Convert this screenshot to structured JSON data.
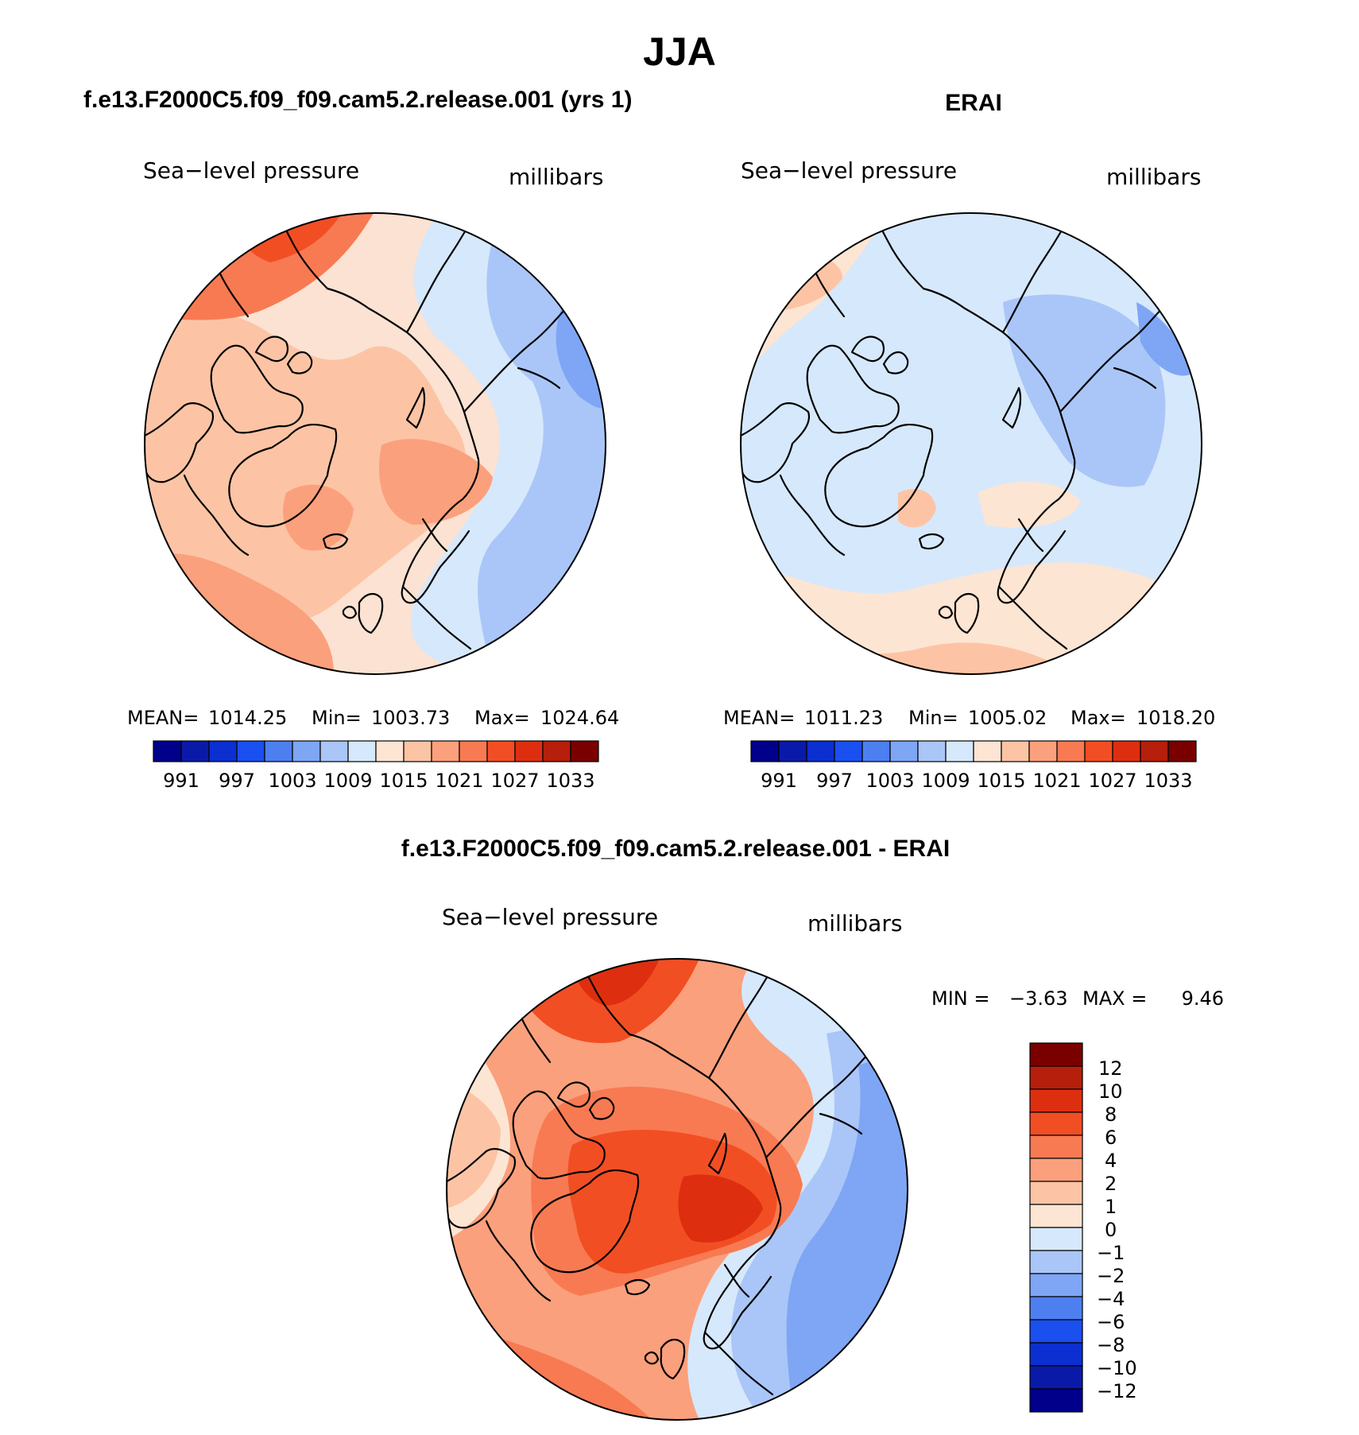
{
  "page_title": "JJA",
  "panels": [
    {
      "id": "model",
      "title": "f.e13.F2000C5.f09_f09.cam5.2.release.001 (yrs 1)",
      "left_label": "Sea−level pressure",
      "right_label": "millibars",
      "mean_label": "MEAN=",
      "mean": "1014.25",
      "min_label": "Min=",
      "min": "1003.73",
      "max_label": "Max=",
      "max": "1024.64"
    },
    {
      "id": "obs",
      "title": "ERAI",
      "left_label": "Sea−level pressure",
      "right_label": "millibars",
      "mean_label": "MEAN=",
      "mean": "1011.23",
      "min_label": "Min=",
      "min": "1005.02",
      "max_label": "Max=",
      "max": "1018.20"
    }
  ],
  "diff_panel": {
    "title": "f.e13.F2000C5.f09_f09.cam5.2.release.001 - ERAI",
    "left_label": "Sea−level pressure",
    "right_label": "millibars",
    "min_label": "MIN =",
    "min": "−3.63",
    "max_label": "MAX =",
    "max": "9.46"
  },
  "colorbars": {
    "slp": {
      "colors": [
        "#00008b",
        "#0a1aa8",
        "#0b2fd0",
        "#1a4ff0",
        "#4d7ff0",
        "#7ea6f5",
        "#aac6f8",
        "#d6e8fb",
        "#fde5d3",
        "#fcc4a5",
        "#fba07c",
        "#f87a52",
        "#f24e23",
        "#dd2f10",
        "#b51f0b",
        "#7a0000"
      ],
      "labels": [
        "991",
        "997",
        "1003",
        "1009",
        "1015",
        "1021",
        "1027",
        "1033"
      ]
    },
    "diff": {
      "colors": [
        "#7a0000",
        "#b51f0b",
        "#dd2f10",
        "#f24e23",
        "#f87a52",
        "#fba07c",
        "#fcc4a5",
        "#fde5d3",
        "#d6e8fb",
        "#aac6f8",
        "#7ea6f5",
        "#4d7ff0",
        "#1a4ff0",
        "#0b2fd0",
        "#0a1aa8",
        "#00008b"
      ],
      "labels": [
        "12",
        "10",
        "8",
        "6",
        "4",
        "2",
        "1",
        "0",
        "−1",
        "−2",
        "−4",
        "−6",
        "−8",
        "−10",
        "−12"
      ]
    }
  },
  "map_palette": {
    "land_outline": "#000000",
    "border": "#000000"
  }
}
